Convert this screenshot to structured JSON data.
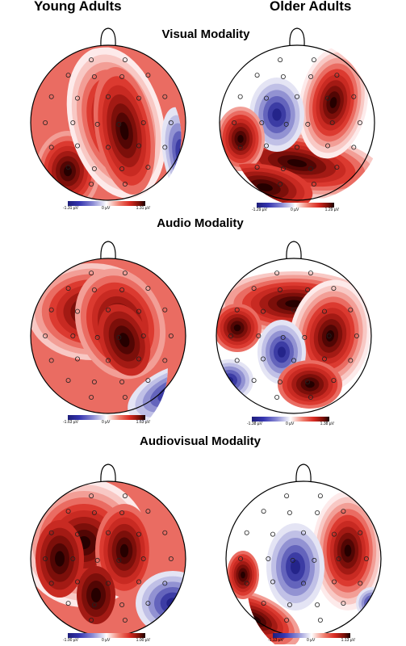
{
  "headers": {
    "young": "Young Adults",
    "older": "Older Adults"
  },
  "modalities": [
    {
      "title": "Visual Modality",
      "young": {
        "min": "-1.31 µV",
        "mid": "0 µV",
        "max": "1.31 µV"
      },
      "older": {
        "min": "-1.29 µV",
        "mid": "0 µV",
        "max": "1.29 µV"
      }
    },
    {
      "title": "Audio Modality",
      "young": {
        "min": "-1.63 µV",
        "mid": "0 µV",
        "max": "1.63 µV"
      },
      "older": {
        "min": "-1.38 µV",
        "mid": "0 µV",
        "max": "1.38 µV"
      }
    },
    {
      "title": "Audiovisual Modality",
      "young": {
        "min": "-1.00 µV",
        "mid": "0 µV",
        "max": "1.00 µV"
      },
      "older": {
        "min": "-1.13 µV",
        "mid": "0 µV",
        "max": "1.13 µV"
      }
    }
  ],
  "colors": {
    "negative": "#2a2a9a",
    "neutral": "#ffffff",
    "positive": "#d62a22",
    "max": "#1a0000"
  }
}
